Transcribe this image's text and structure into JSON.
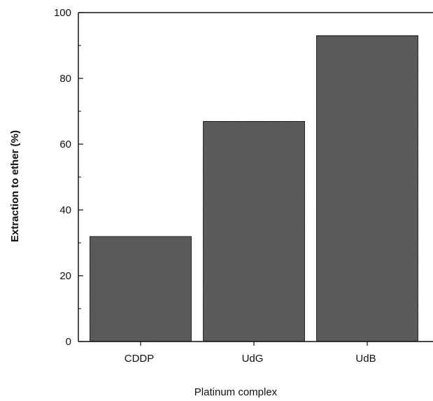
{
  "chart_data": {
    "type": "bar",
    "title": "",
    "xlabel": "Platinum complex",
    "ylabel": "Extraction to ether (%)",
    "categories": [
      "CDDP",
      "UdG",
      "UdB"
    ],
    "values": [
      32,
      67,
      93
    ],
    "ylim": [
      0,
      100
    ],
    "yticks": [
      0,
      20,
      40,
      60,
      80,
      100
    ],
    "ytick_labels": [
      "0",
      "20",
      "40",
      "60",
      "80",
      "100"
    ],
    "grid": false,
    "legend": "none",
    "colors": {
      "bar_fill": "#5e5e5e",
      "bar_stroke": "#1a1a1a",
      "axis": "#111111",
      "text": "#111111"
    }
  }
}
